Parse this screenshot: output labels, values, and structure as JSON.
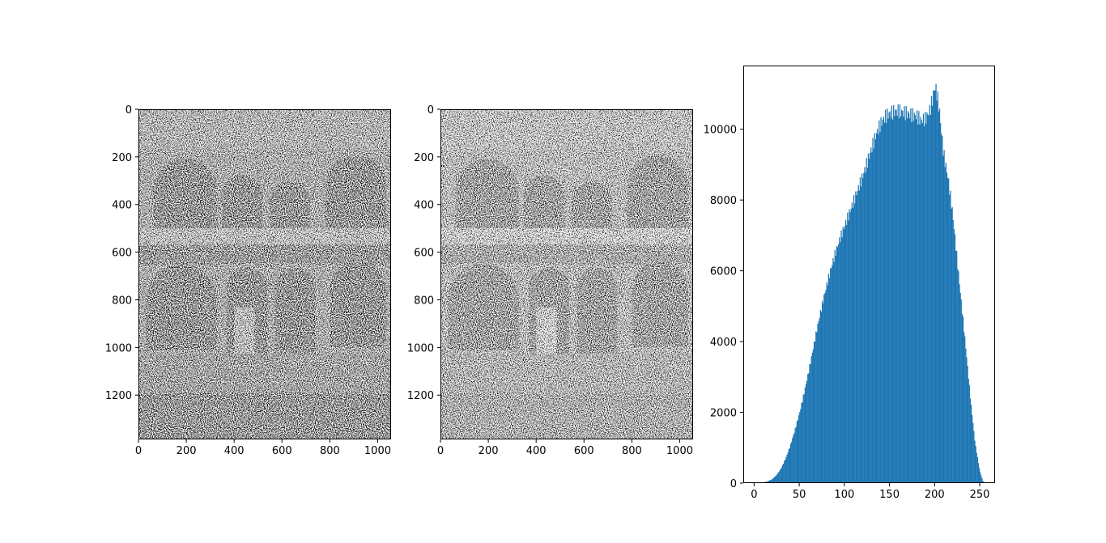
{
  "chart_data": [
    {
      "type": "heatmap",
      "xlabel": "",
      "ylabel": "",
      "xlim": [
        0,
        1056
      ],
      "ylim": [
        1386,
        0
      ],
      "x_ticks": [
        "0",
        "200",
        "400",
        "600",
        "800",
        "1000"
      ],
      "y_ticks": [
        "0",
        "200",
        "400",
        "600",
        "800",
        "1000",
        "1200"
      ],
      "x_tick_values": [
        0,
        200,
        400,
        600,
        800,
        1000
      ],
      "y_tick_values": [
        0,
        200,
        400,
        600,
        800,
        1000,
        1200
      ],
      "colormap": "gray",
      "content": "noisy grayscale photograph of an arcaded courtyard (darker, high-contrast noise)",
      "tone": "dark"
    },
    {
      "type": "heatmap",
      "xlabel": "",
      "ylabel": "",
      "xlim": [
        0,
        1056
      ],
      "ylim": [
        1386,
        0
      ],
      "x_ticks": [
        "0",
        "200",
        "400",
        "600",
        "800",
        "1000"
      ],
      "y_ticks": [
        "0",
        "200",
        "400",
        "600",
        "800",
        "1000",
        "1200"
      ],
      "x_tick_values": [
        0,
        200,
        400,
        600,
        800,
        1000
      ],
      "y_tick_values": [
        0,
        200,
        400,
        600,
        800,
        1000,
        1200
      ],
      "colormap": "gray",
      "content": "noisy grayscale photograph of an arcaded courtyard (lighter)",
      "tone": "light"
    },
    {
      "type": "bar",
      "subtype": "histogram",
      "xlabel": "",
      "ylabel": "",
      "xlim": [
        -12,
        267
      ],
      "ylim": [
        0,
        11800
      ],
      "x_ticks": [
        "0",
        "50",
        "100",
        "150",
        "200",
        "250"
      ],
      "y_ticks": [
        "0",
        "2000",
        "4000",
        "6000",
        "8000",
        "10000"
      ],
      "x_tick_values": [
        0,
        50,
        100,
        150,
        200,
        250
      ],
      "y_tick_values": [
        0,
        2000,
        4000,
        6000,
        8000,
        10000
      ],
      "bar_color": "#1f77b4",
      "bin_width": 1,
      "profile": {
        "x": [
          0,
          10,
          15,
          20,
          25,
          30,
          35,
          40,
          45,
          50,
          55,
          60,
          65,
          70,
          75,
          80,
          85,
          90,
          95,
          100,
          105,
          110,
          115,
          120,
          125,
          130,
          135,
          140,
          145,
          150,
          155,
          160,
          165,
          170,
          175,
          180,
          185,
          190,
          195,
          198,
          200,
          202,
          205,
          208,
          210,
          215,
          220,
          225,
          230,
          235,
          240,
          245,
          250,
          253,
          255
        ],
        "y": [
          0,
          20,
          50,
          110,
          230,
          420,
          700,
          1050,
          1480,
          1950,
          2500,
          3100,
          3750,
          4400,
          5000,
          5550,
          6050,
          6500,
          6900,
          7250,
          7600,
          7950,
          8300,
          8650,
          9050,
          9450,
          9850,
          10150,
          10350,
          10450,
          10500,
          10520,
          10480,
          10450,
          10400,
          10380,
          10250,
          10300,
          10550,
          10900,
          11200,
          11100,
          10600,
          9800,
          9300,
          8600,
          7600,
          6300,
          5000,
          3700,
          2300,
          1100,
          350,
          90,
          0
        ]
      }
    }
  ]
}
